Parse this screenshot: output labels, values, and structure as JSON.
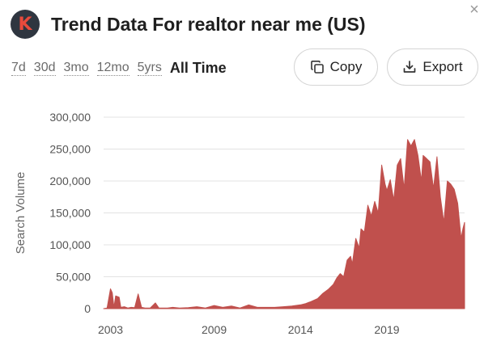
{
  "header": {
    "logo_letter": "K",
    "title": "Trend Data For realtor near me (US)",
    "close": "×"
  },
  "ranges": [
    {
      "label": "7d",
      "active": false
    },
    {
      "label": "30d",
      "active": false
    },
    {
      "label": "3mo",
      "active": false
    },
    {
      "label": "12mo",
      "active": false
    },
    {
      "label": "5yrs",
      "active": false
    },
    {
      "label": "All Time",
      "active": true
    }
  ],
  "toolbar": {
    "copy_label": "Copy",
    "copy_icon": "copy-icon",
    "export_label": "Export",
    "export_icon": "export-icon"
  },
  "colors": {
    "series": "#c0504d",
    "grid": "#e3e3e3",
    "logo_bg": "#2f3640",
    "logo_letter": "#e84a3c"
  },
  "chart_data": {
    "type": "area",
    "title": "",
    "xlabel": "",
    "ylabel": "Search Volume",
    "ylim": [
      0,
      300000
    ],
    "xlim": [
      2002.6,
      2023.5
    ],
    "yticks": [
      0,
      50000,
      100000,
      150000,
      200000,
      250000,
      300000
    ],
    "ytick_labels": [
      "0",
      "50,000",
      "100,000",
      "150,000",
      "200,000",
      "250,000",
      "300,000"
    ],
    "xticks": [
      2003,
      2009,
      2014,
      2019
    ],
    "xtick_labels": [
      "2003",
      "2009",
      "2014",
      "2019"
    ],
    "grid": true,
    "series": [
      {
        "name": "",
        "x": [
          2002.6,
          2002.8,
          2003.0,
          2003.1,
          2003.2,
          2003.3,
          2003.5,
          2003.6,
          2003.8,
          2004.0,
          2004.2,
          2004.4,
          2004.6,
          2004.8,
          2005.0,
          2005.3,
          2005.6,
          2005.8,
          2006.0,
          2006.3,
          2006.6,
          2007.0,
          2007.5,
          2008.0,
          2008.5,
          2009.0,
          2009.5,
          2010.0,
          2010.5,
          2011.0,
          2011.5,
          2012.0,
          2012.5,
          2013.0,
          2013.5,
          2014.0,
          2014.3,
          2014.6,
          2015.0,
          2015.3,
          2015.6,
          2015.9,
          2016.1,
          2016.3,
          2016.5,
          2016.7,
          2016.9,
          2017.0,
          2017.2,
          2017.4,
          2017.5,
          2017.7,
          2017.9,
          2018.1,
          2018.3,
          2018.5,
          2018.7,
          2018.9,
          2019.0,
          2019.2,
          2019.4,
          2019.6,
          2019.8,
          2020.0,
          2020.2,
          2020.4,
          2020.6,
          2020.8,
          2021.0,
          2021.1,
          2021.3,
          2021.5,
          2021.7,
          2021.9,
          2022.1,
          2022.3,
          2022.5,
          2022.7,
          2022.9,
          2023.1,
          2023.3,
          2023.4,
          2023.5
        ],
        "values": [
          0,
          1000,
          31000,
          25000,
          2000,
          20000,
          18000,
          2000,
          3000,
          1000,
          2000,
          1500,
          23000,
          2000,
          1000,
          1000,
          9000,
          1000,
          1000,
          1000,
          2000,
          1000,
          1500,
          3000,
          1000,
          5000,
          2000,
          4000,
          1000,
          6000,
          2000,
          2000,
          2000,
          3000,
          4000,
          6000,
          8000,
          11000,
          16000,
          24000,
          30000,
          38000,
          48000,
          55000,
          50000,
          76000,
          82000,
          70000,
          110000,
          95000,
          125000,
          120000,
          162000,
          145000,
          168000,
          150000,
          225000,
          195000,
          185000,
          202000,
          170000,
          225000,
          235000,
          188000,
          265000,
          255000,
          265000,
          240000,
          200000,
          240000,
          235000,
          230000,
          188000,
          238000,
          175000,
          135000,
          200000,
          195000,
          187000,
          165000,
          110000,
          125000,
          135000
        ]
      }
    ]
  }
}
